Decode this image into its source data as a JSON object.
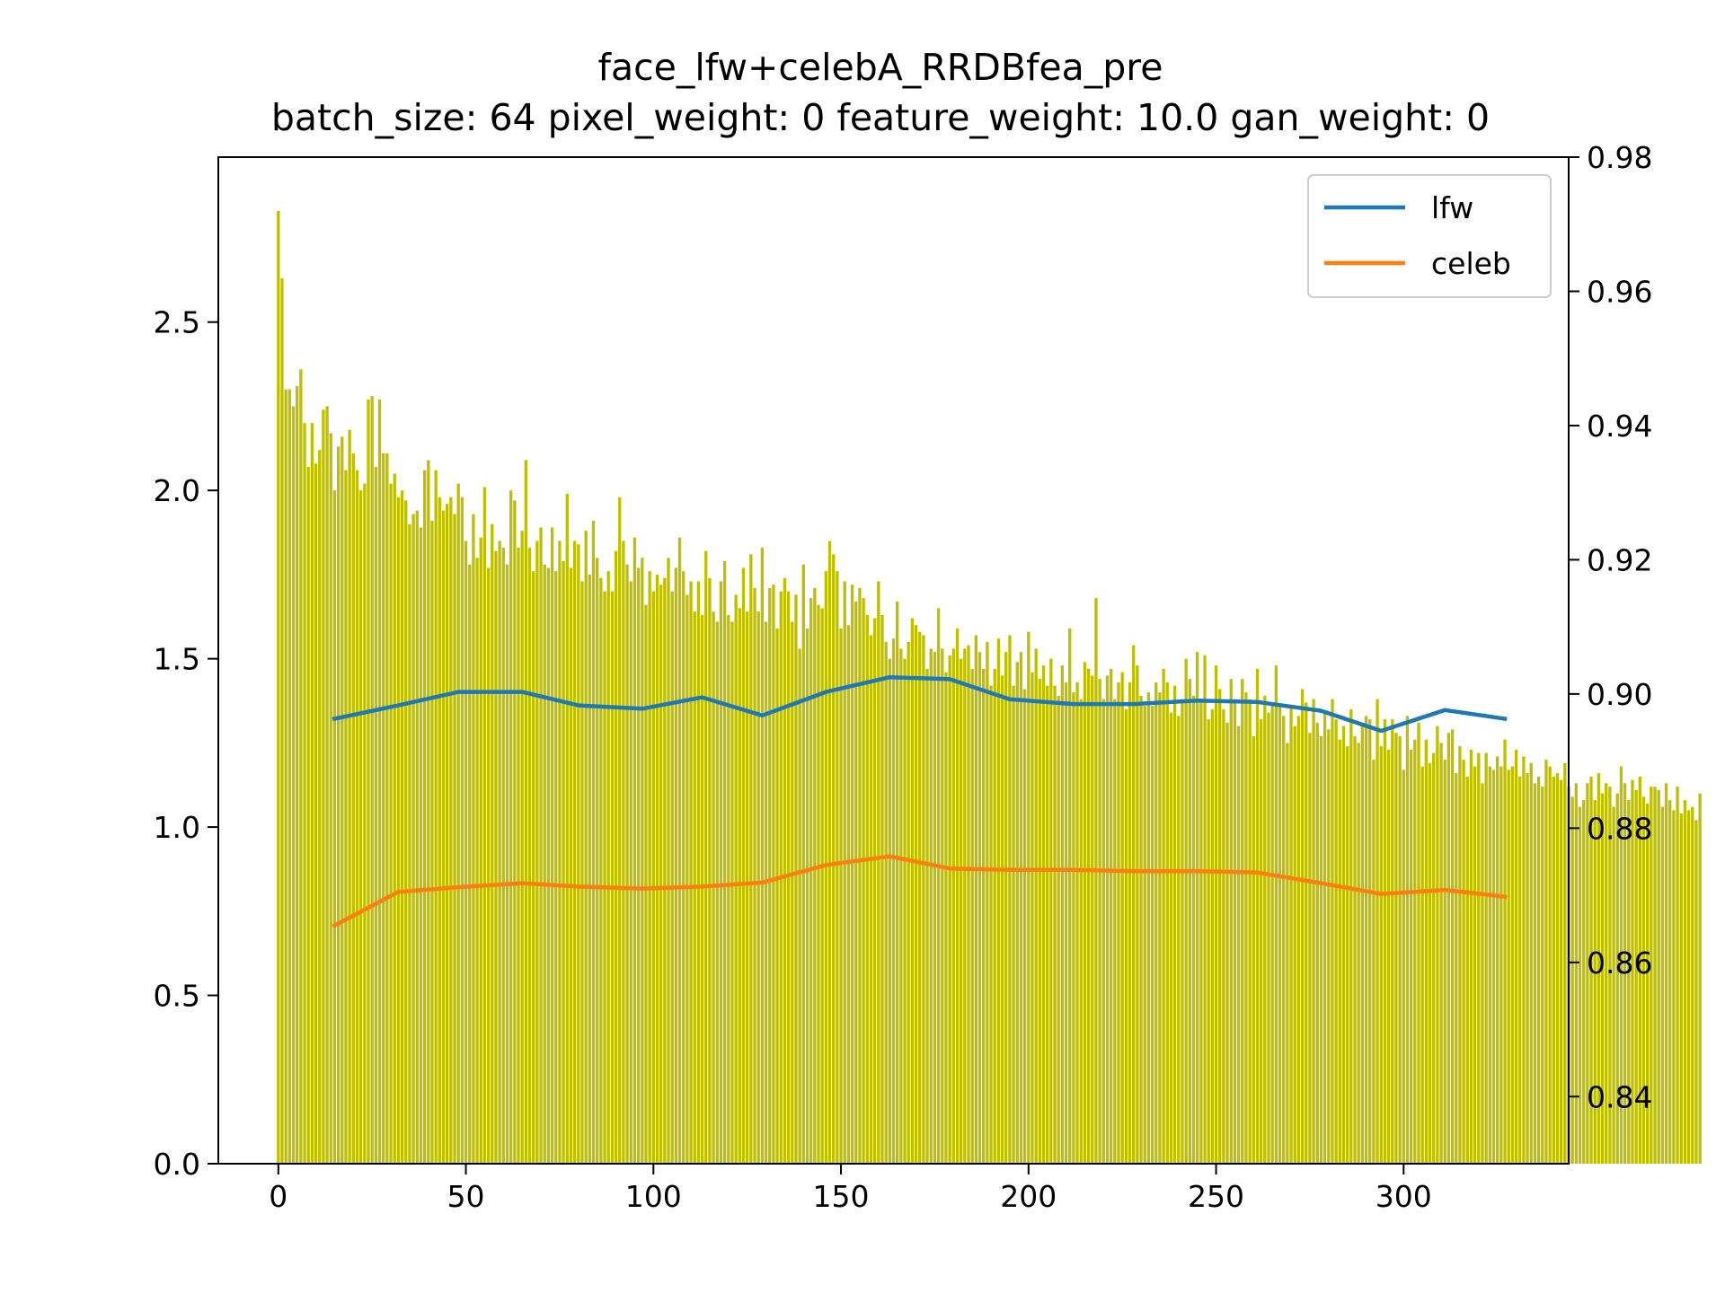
{
  "chart_data": {
    "type": "bar+line",
    "title": "face_lfw+celebA_RRDBfea_pre",
    "subtitle": "batch_size: 64 pixel_weight: 0 feature_weight: 10.0 gan_weight: 0",
    "xlabel": "",
    "ylabel_left": "",
    "ylabel_right": "",
    "xlim": [
      -16,
      344
    ],
    "ylim_left": [
      0,
      2.99
    ],
    "ylim_right": [
      0.83,
      0.98
    ],
    "x_ticks": [
      0,
      50,
      100,
      150,
      200,
      250,
      300
    ],
    "y_left_ticks": [
      "0.0",
      "0.5",
      "1.0",
      "1.5",
      "2.0",
      "2.5"
    ],
    "y_right_ticks": [
      "0.84",
      "0.86",
      "0.88",
      "0.90",
      "0.92",
      "0.94",
      "0.96",
      "0.98"
    ],
    "grid": false,
    "legend_position": "top-right",
    "bar_series": {
      "axis": "left",
      "color": "#bfbf00",
      "x_start": 0,
      "values": [
        2.83,
        2.63,
        2.3,
        2.3,
        2.25,
        2.31,
        2.36,
        2.2,
        2.07,
        2.2,
        2.08,
        2.12,
        2.24,
        2.25,
        2.17,
        2.0,
        2.13,
        2.16,
        2.06,
        2.18,
        2.11,
        2.06,
        2.0,
        2.02,
        2.27,
        2.28,
        2.07,
        2.27,
        2.11,
        2.11,
        2.02,
        2.05,
        1.98,
        2.0,
        1.97,
        1.9,
        1.93,
        1.94,
        1.89,
        2.06,
        2.09,
        1.91,
        2.06,
        1.98,
        1.94,
        1.96,
        1.98,
        1.93,
        2.02,
        1.98,
        1.85,
        1.78,
        1.93,
        1.8,
        1.86,
        2.01,
        1.77,
        1.9,
        1.82,
        1.85,
        1.83,
        1.78,
        2.0,
        1.97,
        1.83,
        1.88,
        2.09,
        1.83,
        1.76,
        1.85,
        1.89,
        1.78,
        1.77,
        1.89,
        1.76,
        1.85,
        1.79,
        1.99,
        1.77,
        1.85,
        1.84,
        1.73,
        1.88,
        1.75,
        1.91,
        1.8,
        1.74,
        1.7,
        1.76,
        1.7,
        1.82,
        1.98,
        1.85,
        1.78,
        1.73,
        1.86,
        1.77,
        1.8,
        1.66,
        1.76,
        1.7,
        1.75,
        1.72,
        1.74,
        1.8,
        1.7,
        1.77,
        1.86,
        1.76,
        1.69,
        1.73,
        1.64,
        1.73,
        1.63,
        1.82,
        1.74,
        1.64,
        1.61,
        1.73,
        1.79,
        1.63,
        1.61,
        1.69,
        1.65,
        1.77,
        1.64,
        1.81,
        1.71,
        1.64,
        1.83,
        1.61,
        1.71,
        1.72,
        1.59,
        1.7,
        1.74,
        1.7,
        1.61,
        1.69,
        1.53,
        1.78,
        1.59,
        1.68,
        1.71,
        1.66,
        1.65,
        1.76,
        1.85,
        1.81,
        1.76,
        1.59,
        1.73,
        1.6,
        1.72,
        1.67,
        1.71,
        1.68,
        1.63,
        1.57,
        1.62,
        1.73,
        1.63,
        1.55,
        1.5,
        1.56,
        1.67,
        1.53,
        1.5,
        1.55,
        1.62,
        1.6,
        1.58,
        1.57,
        1.47,
        1.53,
        1.52,
        1.65,
        1.53,
        1.46,
        1.51,
        1.53,
        1.59,
        1.5,
        1.53,
        1.54,
        1.47,
        1.57,
        1.52,
        1.47,
        1.55,
        1.42,
        1.47,
        1.56,
        1.45,
        1.52,
        1.57,
        1.42,
        1.49,
        1.52,
        1.41,
        1.58,
        1.46,
        1.53,
        1.44,
        1.48,
        1.42,
        1.5,
        1.42,
        1.39,
        1.48,
        1.43,
        1.59,
        1.4,
        1.43,
        1.38,
        1.49,
        1.47,
        1.45,
        1.68,
        1.44,
        1.38,
        1.45,
        1.47,
        1.38,
        1.43,
        1.46,
        1.35,
        1.43,
        1.54,
        1.48,
        1.39,
        1.36,
        1.4,
        1.36,
        1.43,
        1.4,
        1.47,
        1.43,
        1.34,
        1.42,
        1.33,
        1.38,
        1.5,
        1.44,
        1.39,
        1.52,
        1.37,
        1.51,
        1.32,
        1.35,
        1.48,
        1.41,
        1.35,
        1.31,
        1.44,
        1.38,
        1.3,
        1.44,
        1.4,
        1.38,
        1.27,
        1.47,
        1.32,
        1.39,
        1.34,
        1.36,
        1.48,
        1.36,
        1.33,
        1.25,
        1.36,
        1.3,
        1.33,
        1.41,
        1.37,
        1.28,
        1.38,
        1.31,
        1.27,
        1.34,
        1.29,
        1.38,
        1.32,
        1.26,
        1.3,
        1.24,
        1.35,
        1.27,
        1.25,
        1.3,
        1.33,
        1.32,
        1.2,
        1.38,
        1.24,
        1.32,
        1.23,
        1.32,
        1.28,
        1.27,
        1.17,
        1.33,
        1.23,
        1.26,
        1.31,
        1.18,
        1.26,
        1.19,
        1.22,
        1.3,
        1.25,
        1.2,
        1.28,
        1.29,
        1.16,
        1.24,
        1.2,
        1.15,
        1.23,
        1.18,
        1.22,
        1.13,
        1.22,
        1.18,
        1.17,
        1.21,
        1.18,
        1.26,
        1.17,
        1.18,
        1.23,
        1.15,
        1.21,
        1.16,
        1.19,
        1.13,
        1.15,
        1.12,
        1.2,
        1.18,
        1.15,
        1.16,
        1.14,
        1.19,
        1.12,
        1.09,
        1.13,
        1.06,
        1.08,
        1.13,
        1.15,
        1.08,
        1.16,
        1.1,
        1.13,
        1.12,
        1.06,
        1.1,
        1.18,
        1.13,
        1.08,
        1.14,
        1.11,
        1.15,
        1.09,
        1.07,
        1.12,
        1.12,
        1.11,
        1.06,
        1.13,
        1.08,
        1.05,
        1.12,
        1.04,
        1.08,
        1.05,
        1.06,
        1.02,
        1.1
      ]
    },
    "series": [
      {
        "name": "lfw",
        "axis": "right",
        "color": "#1f77b4",
        "x": [
          15,
          32,
          48,
          65,
          80,
          97,
          113,
          129,
          146,
          163,
          179,
          195,
          212,
          228,
          245,
          261,
          278,
          294,
          311,
          327
        ],
        "values": [
          0.8963,
          0.8983,
          0.9003,
          0.9003,
          0.8983,
          0.8978,
          0.8995,
          0.8968,
          0.9003,
          0.9025,
          0.9022,
          0.8992,
          0.8985,
          0.8985,
          0.899,
          0.8988,
          0.8975,
          0.8945,
          0.8976,
          0.8963
        ]
      },
      {
        "name": "celeb",
        "axis": "right",
        "color": "#ff7f0e",
        "x": [
          15,
          32,
          48,
          65,
          80,
          97,
          113,
          129,
          146,
          163,
          179,
          195,
          212,
          228,
          245,
          261,
          278,
          294,
          311,
          327
        ],
        "values": [
          0.8655,
          0.8705,
          0.8712,
          0.8718,
          0.8713,
          0.871,
          0.8713,
          0.8719,
          0.8745,
          0.8758,
          0.874,
          0.8738,
          0.8738,
          0.8736,
          0.8736,
          0.8734,
          0.8718,
          0.8702,
          0.8708,
          0.8698
        ]
      }
    ]
  }
}
